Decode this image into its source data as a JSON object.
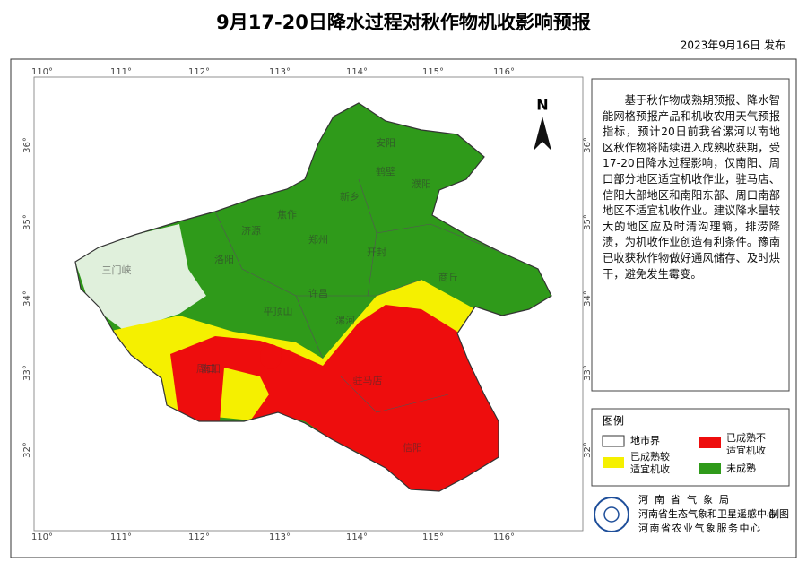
{
  "header": {
    "title": "9月17-20日降水过程对秋作物机收影响预报",
    "date": "2023年9月16日 发布"
  },
  "map": {
    "north": "N",
    "longitudes": [
      "110°",
      "111°",
      "112°",
      "113°",
      "114°",
      "115°",
      "116°"
    ],
    "latitudes": [
      "36°",
      "35°",
      "34°",
      "33°",
      "32°"
    ],
    "cities": [
      "安阳",
      "鹤壁",
      "濮阳",
      "新乡",
      "焦作",
      "济源",
      "郑州",
      "开封",
      "商丘",
      "洛阳",
      "三门峡",
      "平顶山",
      "许昌",
      "漯河",
      "周口",
      "南阳",
      "驻马店",
      "信阳"
    ]
  },
  "description": "基于秋作物成熟期预报、降水智能网格预报产品和机收农用天气预报指标，预计20日前我省漯河以南地区秋作物将陆续进入成熟收获期，受17-20日降水过程影响，仅南阳、周口部分地区适宜机收作业，驻马店、信阳大部地区和南阳东部、周口南部地区不适宜机收作业。建议降水量较大的地区应及时清沟理墒，排涝降渍，为机收作业创造有利条件。豫南已收获秋作物做好通风储存、及时烘干，避免发生霉变。",
  "legend": {
    "title": "图例",
    "items": [
      "地市界",
      "已成熟较适宜机收",
      "已成熟不适宜机收",
      "未成熟"
    ]
  },
  "footer": {
    "org1": "河南省气象局",
    "org2": "河南省生态气象和卫星遥感中心",
    "made": "制图",
    "org3": "河南省农业气象服务中心"
  }
}
